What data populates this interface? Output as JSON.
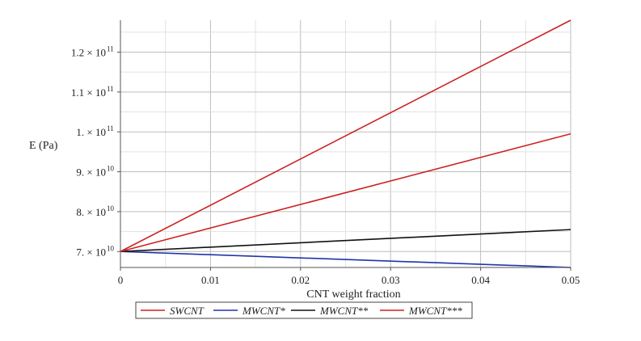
{
  "chart_data": {
    "type": "line",
    "xlabel": "CNT weight fraction",
    "ylabel": "E (Pa)",
    "xlim": [
      0,
      0.05
    ],
    "ylim": [
      66000000000.0,
      128000000000.0
    ],
    "grid": true,
    "legend_position": "bottom-center",
    "x_ticks": [
      {
        "value": 0,
        "label": "0"
      },
      {
        "value": 0.01,
        "label": "0.01"
      },
      {
        "value": 0.02,
        "label": "0.02"
      },
      {
        "value": 0.03,
        "label": "0.03"
      },
      {
        "value": 0.04,
        "label": "0.04"
      },
      {
        "value": 0.05,
        "label": "0.05"
      }
    ],
    "y_ticks": [
      {
        "value": 70000000000.0,
        "mantissa": "7. × 10",
        "exponent": "10"
      },
      {
        "value": 80000000000.0,
        "mantissa": "8. × 10",
        "exponent": "10"
      },
      {
        "value": 90000000000.0,
        "mantissa": "9. × 10",
        "exponent": "10"
      },
      {
        "value": 100000000000.0,
        "mantissa": "1. × 10",
        "exponent": "11"
      },
      {
        "value": 110000000000.0,
        "mantissa": "1.1 × 10",
        "exponent": "11"
      },
      {
        "value": 120000000000.0,
        "mantissa": "1.2 × 10",
        "exponent": "11"
      }
    ],
    "x": [
      0,
      0.05
    ],
    "series": [
      {
        "name": "SWCNT",
        "color": "#cc2222",
        "values": [
          70000000000.0,
          128000000000.0
        ]
      },
      {
        "name": "MWCNT*",
        "color": "#2233aa",
        "values": [
          70000000000.0,
          66000000000.0
        ]
      },
      {
        "name": "MWCNT**",
        "color": "#111111",
        "values": [
          70000000000.0,
          75500000000.0
        ]
      },
      {
        "name": "MWCNT***",
        "color": "#cc2222",
        "values": [
          70000000000.0,
          99500000000.0
        ]
      }
    ]
  }
}
